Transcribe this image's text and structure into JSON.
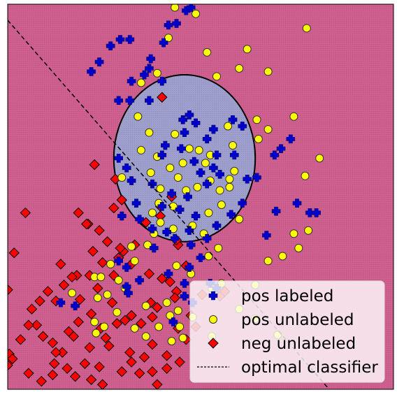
{
  "chart_data": {
    "type": "scatter",
    "title": "",
    "xlabel": "",
    "ylabel": "",
    "grid": false,
    "xlim": [
      -6,
      6
    ],
    "ylim": [
      -6,
      6
    ],
    "legend": {
      "placement": "bottom-right"
    },
    "background_regions": [
      {
        "name": "negative region",
        "color": "#cf5f8f"
      },
      {
        "name": "positive region",
        "shape": "ellipse",
        "center": [
          -0.5,
          1.2
        ],
        "radii": [
          2.2,
          2.6
        ],
        "color": "#9f9fce"
      }
    ],
    "series": [
      {
        "name": "pos labeled",
        "marker": "plus",
        "color": "#0000cc",
        "points": [
          [
            -3.4,
            3.9
          ],
          [
            -3.15,
            4.2
          ],
          [
            -2.8,
            4.7
          ],
          [
            -2.5,
            4.9
          ],
          [
            -2.2,
            4.9
          ],
          [
            -1.6,
            4.0
          ],
          [
            -1.15,
            4.8
          ],
          [
            -1.0,
            5.35
          ],
          [
            -0.75,
            5.4
          ],
          [
            -0.45,
            5.8
          ],
          [
            -0.3,
            5.9
          ],
          [
            -1.2,
            3.6
          ],
          [
            -1.6,
            3.0
          ],
          [
            -2.2,
            3.0
          ],
          [
            -2.55,
            3.0
          ],
          [
            -2.15,
            3.6
          ],
          [
            -1.75,
            3.8
          ],
          [
            -1.55,
            4.3
          ],
          [
            -0.55,
            2.4
          ],
          [
            -0.35,
            2.55
          ],
          [
            -0.15,
            2.3
          ],
          [
            -0.5,
            2.0
          ],
          [
            0.2,
            1.8
          ],
          [
            0.4,
            2.1
          ],
          [
            0.5,
            1.3
          ],
          [
            0.6,
            0.7
          ],
          [
            0.2,
            0.4
          ],
          [
            -0.6,
            1.5
          ],
          [
            -1.1,
            1.6
          ],
          [
            -1.2,
            1.3
          ],
          [
            -0.9,
            0.1
          ],
          [
            -0.4,
            0.0
          ],
          [
            -0.2,
            1.1
          ],
          [
            0.0,
            0.75
          ],
          [
            0.4,
            0.9
          ],
          [
            -2.55,
            1.2
          ],
          [
            -2.3,
            0.9
          ],
          [
            -2.15,
            0.5
          ],
          [
            -1.5,
            0.4
          ],
          [
            -2.0,
            -0.2
          ],
          [
            -2.45,
            -0.6
          ],
          [
            -1.9,
            -0.7
          ],
          [
            -1.2,
            -0.3
          ],
          [
            -1.05,
            -1.1
          ],
          [
            -1.5,
            -1.0
          ],
          [
            -0.8,
            -1.3
          ],
          [
            -0.3,
            -1.5
          ],
          [
            0.0,
            -1.9
          ],
          [
            0.2,
            -1.3
          ],
          [
            0.5,
            -0.9
          ],
          [
            0.95,
            -0.55
          ],
          [
            1.3,
            -0.2
          ],
          [
            1.45,
            0.55
          ],
          [
            1.75,
            0.6
          ],
          [
            1.05,
            1.3
          ],
          [
            1.3,
            2.2
          ],
          [
            1.0,
            2.4
          ],
          [
            -0.65,
            -0.4
          ],
          [
            -0.15,
            -0.6
          ],
          [
            -0.35,
            -1.05
          ],
          [
            -1.45,
            -1.6
          ],
          [
            -2.55,
            -2.0
          ],
          [
            -2.3,
            -2.2
          ],
          [
            -1.0,
            -2.4
          ],
          [
            -0.35,
            -2.2
          ],
          [
            -0.5,
            -2.7
          ],
          [
            0.3,
            -2.7
          ],
          [
            0.5,
            -2.85
          ],
          [
            2.5,
            1.5
          ],
          [
            2.3,
            1.3
          ],
          [
            2.8,
            1.8
          ],
          [
            3.0,
            -0.2
          ],
          [
            3.4,
            -0.5
          ],
          [
            3.6,
            -0.5
          ],
          [
            2.35,
            -0.45
          ],
          [
            2.05,
            -1.2
          ],
          [
            -1.9,
            -2.6
          ],
          [
            -2.3,
            -2.8
          ],
          [
            -2.25,
            -3.0
          ],
          [
            -4.35,
            -3.3
          ],
          [
            -3.9,
            -3.4
          ],
          [
            -0.25,
            -3.3
          ],
          [
            -0.5,
            -3.1
          ],
          [
            -0.85,
            -3.9
          ]
        ]
      },
      {
        "name": "pos unlabeled",
        "marker": "circle",
        "color": "#ffff00",
        "points": [
          [
            -1.35,
            3.85
          ],
          [
            -0.15,
            5.7
          ],
          [
            0.2,
            4.5
          ],
          [
            0.5,
            3.75
          ],
          [
            1.45,
            4.6
          ],
          [
            1.2,
            4.0
          ],
          [
            2.1,
            3.9
          ],
          [
            3.3,
            5.25
          ],
          [
            -0.8,
            5.9
          ],
          [
            -1.0,
            4.95
          ],
          [
            -1.85,
            3.55
          ],
          [
            -1.95,
            2.5
          ],
          [
            -1.6,
            2.0
          ],
          [
            -1.85,
            1.45
          ],
          [
            -1.35,
            1.25
          ],
          [
            -1.55,
            0.75
          ],
          [
            -2.45,
            0.6
          ],
          [
            -1.25,
            0.25
          ],
          [
            -1.3,
            -0.2
          ],
          [
            -1.5,
            -0.5
          ],
          [
            -1.25,
            -0.8
          ],
          [
            -0.85,
            -0.3
          ],
          [
            -0.45,
            0.2
          ],
          [
            -0.1,
            0.3
          ],
          [
            0.3,
            0.5
          ],
          [
            0.6,
            0.2
          ],
          [
            0.9,
            0.3
          ],
          [
            1.05,
            0.8
          ],
          [
            1.0,
            1.6
          ],
          [
            0.85,
            2.2
          ],
          [
            1.75,
            2.4
          ],
          [
            2.1,
            2.1
          ],
          [
            1.8,
            1.8
          ],
          [
            1.2,
            -0.7
          ],
          [
            0.55,
            -1.6
          ],
          [
            0.25,
            -1.85
          ],
          [
            -0.3,
            -2.4
          ],
          [
            -0.75,
            -2.15
          ],
          [
            -1.45,
            -1.15
          ],
          [
            -1.65,
            -1.5
          ],
          [
            -2.15,
            -1.55
          ],
          [
            -2.05,
            -2.0
          ],
          [
            -2.8,
            -2.1
          ],
          [
            -3.3,
            -2.5
          ],
          [
            -2.55,
            -2.6
          ],
          [
            0.35,
            -2.85
          ],
          [
            0.65,
            -2.7
          ],
          [
            1.7,
            -2.75
          ],
          [
            2.1,
            -2.0
          ],
          [
            2.55,
            -1.85
          ],
          [
            2.9,
            -1.15
          ],
          [
            3.35,
            -1.05
          ],
          [
            -0.8,
            1.95
          ],
          [
            -0.35,
            1.5
          ],
          [
            -0.05,
            1.45
          ],
          [
            0.3,
            1.3
          ],
          [
            0.15,
            1.05
          ],
          [
            -0.55,
            1.05
          ],
          [
            -0.95,
            0.9
          ],
          [
            -0.7,
            0.6
          ],
          [
            0.25,
            -0.5
          ],
          [
            0.65,
            -0.25
          ],
          [
            0.9,
            0.55
          ],
          [
            -0.85,
            -1.0
          ],
          [
            -0.25,
            -0.9
          ],
          [
            0.1,
            -1.15
          ],
          [
            -0.7,
            -3.55
          ],
          [
            -0.95,
            -3.7
          ],
          [
            -0.65,
            -4.05
          ],
          [
            -0.25,
            -3.75
          ],
          [
            0.35,
            -4.35
          ],
          [
            2.9,
            2.5
          ],
          [
            3.25,
            0.65
          ],
          [
            3.7,
            1.2
          ],
          [
            3.05,
            -1.6
          ],
          [
            -2.35,
            -2.85
          ],
          [
            -2.9,
            -3.05
          ],
          [
            -3.1,
            -2.5
          ],
          [
            -1.3,
            -4.05
          ],
          [
            -1.7,
            -4.35
          ],
          [
            -2.05,
            -4.1
          ],
          [
            -1.05,
            -3.3
          ],
          [
            -1.7,
            -3.4
          ],
          [
            -2.6,
            -3.6
          ],
          [
            -3.2,
            -3.15
          ],
          [
            1.2,
            -3.5
          ],
          [
            1.7,
            -3.8
          ],
          [
            2.4,
            -4.3
          ],
          [
            -3.25,
            -4.25
          ],
          [
            -0.9,
            -4.5
          ],
          [
            -4.0,
            -3.0
          ],
          [
            -3.3,
            -3.9
          ],
          [
            -3.0,
            -4.05
          ],
          [
            -0.55,
            -4.4
          ]
        ]
      },
      {
        "name": "neg unlabeled",
        "marker": "diamond",
        "color": "#ff0000",
        "points": [
          [
            -1.2,
            3.1
          ],
          [
            -3.3,
            1.0
          ],
          [
            -2.65,
            0.55
          ],
          [
            -2.45,
            -0.1
          ],
          [
            -1.25,
            -0.3
          ],
          [
            -1.7,
            -0.8
          ],
          [
            -2.05,
            -1.5
          ],
          [
            -2.4,
            -1.7
          ],
          [
            -2.55,
            -1.9
          ],
          [
            -2.15,
            -2.1
          ],
          [
            -3.35,
            -1.7
          ],
          [
            -3.5,
            -0.85
          ],
          [
            -3.8,
            -0.5
          ],
          [
            -3.55,
            -0.85
          ],
          [
            -3.15,
            -1.05
          ],
          [
            -3.05,
            -2.05
          ],
          [
            -3.45,
            -2.45
          ],
          [
            -3.85,
            -2.45
          ],
          [
            -4.25,
            -2.75
          ],
          [
            -4.5,
            -3.25
          ],
          [
            -4.75,
            -2.95
          ],
          [
            -5.0,
            -3.25
          ],
          [
            -5.25,
            -3.5
          ],
          [
            -6.0,
            -2.9
          ],
          [
            -5.8,
            -1.75
          ],
          [
            -5.45,
            -0.5
          ],
          [
            -4.35,
            -2.1
          ],
          [
            -4.0,
            -2.5
          ],
          [
            -5.1,
            -4.0
          ],
          [
            -5.35,
            -4.0
          ],
          [
            -4.9,
            -4.35
          ],
          [
            -4.1,
            -4.2
          ],
          [
            -3.8,
            -3.9
          ],
          [
            -3.4,
            -3.65
          ],
          [
            -3.1,
            -4.1
          ],
          [
            -2.95,
            -4.4
          ],
          [
            -2.6,
            -3.95
          ],
          [
            -2.35,
            -3.85
          ],
          [
            -2.15,
            -3.7
          ],
          [
            -1.85,
            -3.95
          ],
          [
            -1.5,
            -3.75
          ],
          [
            -1.35,
            -3.45
          ],
          [
            -1.55,
            -3.3
          ],
          [
            -0.75,
            -2.95
          ],
          [
            -0.45,
            -2.15
          ],
          [
            -0.95,
            -2.65
          ],
          [
            -0.8,
            -3.15
          ],
          [
            -0.3,
            -3.7
          ],
          [
            -0.7,
            -4.1
          ],
          [
            -0.45,
            -4.45
          ],
          [
            -1.05,
            -4.95
          ],
          [
            -0.65,
            -5.15
          ],
          [
            -1.05,
            -5.35
          ],
          [
            -1.5,
            -4.6
          ],
          [
            -1.75,
            -5.0
          ],
          [
            -1.9,
            -5.5
          ],
          [
            -2.15,
            -5.15
          ],
          [
            -2.45,
            -5.45
          ],
          [
            -2.85,
            -4.65
          ],
          [
            -3.15,
            -5.3
          ],
          [
            -3.4,
            -5.7
          ],
          [
            -3.05,
            -5.85
          ],
          [
            -3.9,
            -5.6
          ],
          [
            -4.3,
            -4.85
          ],
          [
            -4.55,
            -5.2
          ],
          [
            -4.6,
            -5.55
          ],
          [
            -4.95,
            -5.75
          ],
          [
            -5.95,
            -4.9
          ],
          [
            -5.85,
            -5.05
          ],
          [
            -5.6,
            -4.45
          ],
          [
            -6.0,
            -5.25
          ],
          [
            -3.45,
            -4.7
          ],
          [
            -2.2,
            -4.85
          ],
          [
            -2.75,
            -3.3
          ],
          [
            -3.75,
            -3.2
          ],
          [
            -3.2,
            -2.85
          ],
          [
            -2.7,
            -2.45
          ],
          [
            -0.7,
            -1.5
          ],
          [
            0.05,
            -3.05
          ],
          [
            0.6,
            -3.1
          ],
          [
            0.75,
            -2.95
          ],
          [
            -0.9,
            0.0
          ],
          [
            -0.75,
            -1.35
          ],
          [
            -2.7,
            -0.35
          ],
          [
            -2.5,
            -1.6
          ],
          [
            -1.6,
            -2.4
          ],
          [
            -1.2,
            -2.55
          ],
          [
            -0.15,
            -4.05
          ],
          [
            -1.25,
            -0.6
          ],
          [
            -2.9,
            -1.4
          ],
          [
            -1.5,
            -5.45
          ],
          [
            -1.35,
            -5.85
          ],
          [
            -3.95,
            -4.35
          ],
          [
            -4.5,
            -4.85
          ],
          [
            -3.6,
            -5.2
          ],
          [
            -4.15,
            -5.35
          ],
          [
            -4.6,
            -4.55
          ],
          [
            -5.35,
            -5.5
          ]
        ]
      },
      {
        "name": "optimal classifier",
        "type": "line",
        "style": "dashed",
        "color": "#000000",
        "points": [
          [
            -6,
            5.5
          ],
          [
            4,
            -6
          ]
        ]
      }
    ]
  }
}
